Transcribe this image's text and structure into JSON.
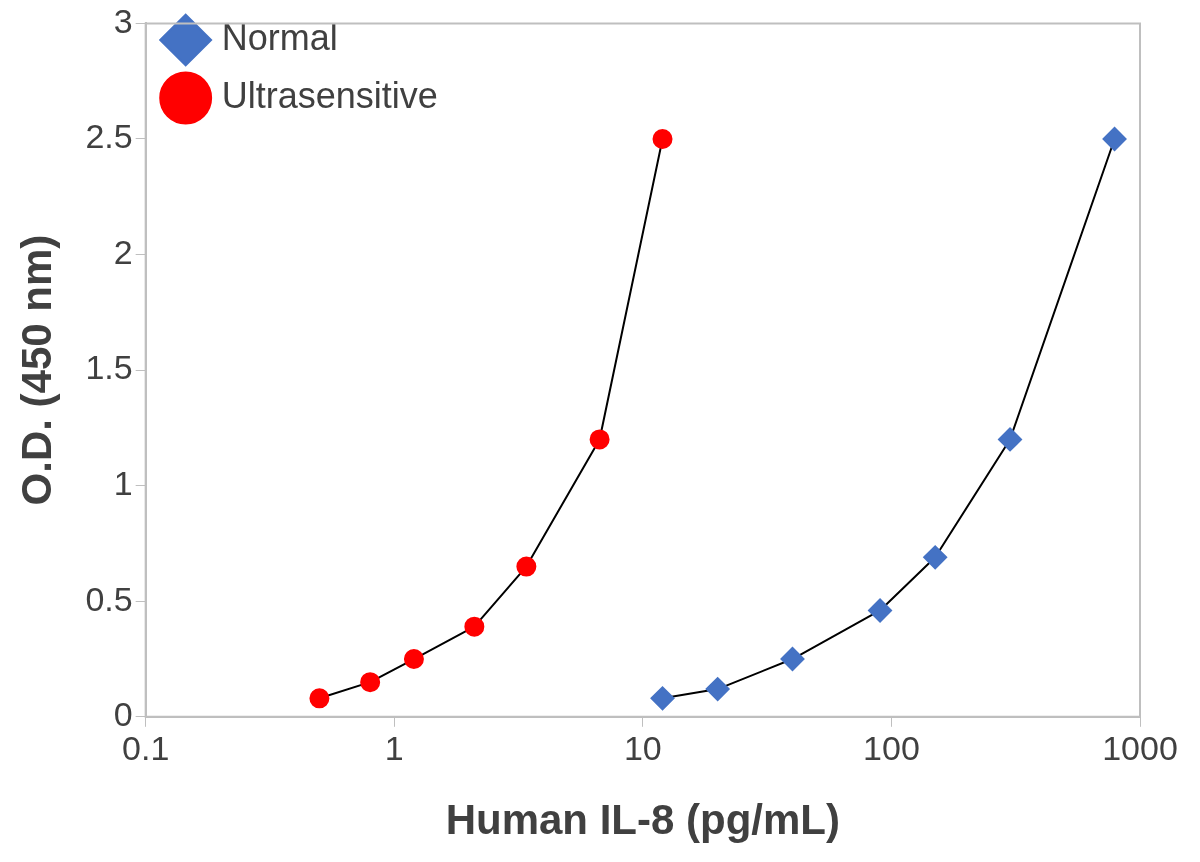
{
  "chart_data": {
    "type": "line",
    "xlabel": "Human IL-8 (pg/mL)",
    "ylabel": "O.D. (450 nm)",
    "log": "x",
    "xlim": [
      0.1,
      1000
    ],
    "xticks": [
      0.1,
      1,
      10,
      100,
      1000
    ],
    "ylim": [
      0,
      3
    ],
    "yticks": [
      0,
      0.5,
      1,
      1.5,
      2,
      2.5,
      3
    ],
    "grid": false,
    "legend": "top left",
    "line_style": "solid",
    "series": [
      {
        "name": "Normal",
        "color": "#4472c4",
        "marker": "diamond",
        "x": [
          12,
          20,
          40,
          90,
          150,
          300,
          790
        ],
        "values": [
          0.08,
          0.12,
          0.25,
          0.46,
          0.69,
          1.2,
          2.5
        ]
      },
      {
        "name": "Ultrasensitive",
        "color": "#ff0000",
        "marker": "circle",
        "x": [
          0.5,
          0.8,
          1.2,
          2.1,
          3.4,
          6.7,
          12
        ],
        "values": [
          0.08,
          0.15,
          0.25,
          0.39,
          0.65,
          1.2,
          2.5
        ]
      }
    ]
  }
}
